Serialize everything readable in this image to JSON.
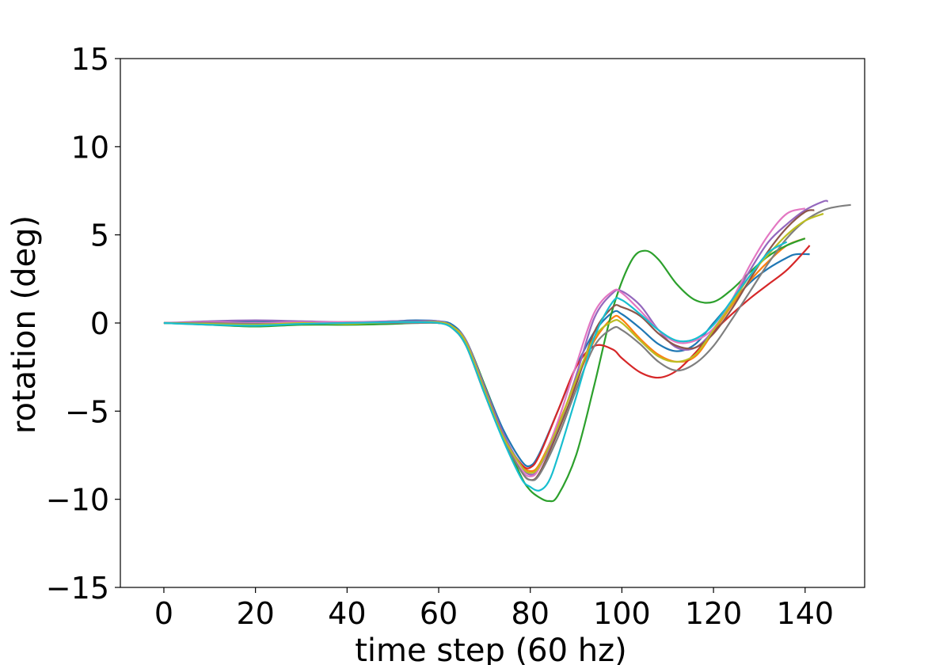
{
  "chart_data": {
    "type": "line",
    "title": "",
    "xlabel": "time step (60 hz)",
    "ylabel": "rotation (deg)",
    "xlim": [
      -9.5,
      153
    ],
    "ylim": [
      -15,
      15
    ],
    "x_ticks": [
      0,
      20,
      40,
      60,
      80,
      100,
      120,
      140
    ],
    "y_ticks": [
      -15,
      -10,
      -5,
      0,
      5,
      10,
      15
    ],
    "y_tick_labels": [
      "−15",
      "−10",
      "−5",
      "0",
      "5",
      "10",
      "15"
    ],
    "grid": false,
    "legend": "none",
    "series": [
      {
        "color": "#1f77b4",
        "x": [
          0,
          10,
          20,
          30,
          40,
          50,
          55,
          60,
          63,
          66,
          70,
          74,
          78,
          80,
          82,
          86,
          90,
          94,
          98,
          100,
          104,
          108,
          112,
          116,
          120,
          124,
          128,
          132,
          136,
          138,
          141
        ],
        "y": [
          0,
          0.05,
          0.1,
          0.05,
          0,
          0.1,
          0.15,
          0.1,
          -0.1,
          -1,
          -3.5,
          -6,
          -7.8,
          -8.1,
          -7.4,
          -5,
          -2.5,
          -0.5,
          0.6,
          0.5,
          -0.3,
          -1.2,
          -1.6,
          -1.2,
          0,
          1.2,
          2.3,
          3.1,
          3.7,
          3.9,
          3.9
        ]
      },
      {
        "color": "#ff7f0e",
        "x": [
          0,
          10,
          20,
          30,
          40,
          50,
          55,
          60,
          63,
          66,
          70,
          74,
          78,
          80,
          82,
          86,
          90,
          94,
          98,
          100,
          104,
          108,
          112,
          116,
          120,
          124,
          128,
          132,
          136,
          140
        ],
        "y": [
          0,
          -0.05,
          -0.1,
          0,
          0.05,
          0.05,
          0.05,
          0.05,
          -0.2,
          -1.1,
          -3.8,
          -6.4,
          -8,
          -8.4,
          -8,
          -5.8,
          -3.3,
          -1,
          0.3,
          0.2,
          -0.9,
          -1.8,
          -2.2,
          -1.9,
          -0.5,
          1,
          2.4,
          3.5,
          4.4,
          4.8
        ]
      },
      {
        "color": "#2ca02c",
        "x": [
          0,
          10,
          20,
          30,
          40,
          50,
          55,
          60,
          63,
          66,
          70,
          74,
          78,
          80,
          82,
          84,
          86,
          90,
          94,
          98,
          102,
          105,
          108,
          112,
          116,
          120,
          124,
          128,
          132,
          136,
          140
        ],
        "y": [
          0,
          -0.1,
          -0.2,
          -0.1,
          -0.1,
          -0.05,
          0,
          0,
          -0.2,
          -1,
          -3.5,
          -6.3,
          -8.7,
          -9.5,
          -9.9,
          -10.1,
          -9.8,
          -7.5,
          -3.5,
          0.8,
          3.5,
          4.1,
          3.6,
          2.2,
          1.3,
          1.2,
          1.9,
          2.9,
          3.8,
          4.4,
          4.8
        ]
      },
      {
        "color": "#d62728",
        "x": [
          0,
          10,
          20,
          30,
          40,
          50,
          55,
          60,
          63,
          66,
          70,
          74,
          78,
          80,
          82,
          86,
          90,
          94,
          98,
          100,
          104,
          108,
          112,
          116,
          120,
          124,
          128,
          132,
          136,
          140,
          141
        ],
        "y": [
          0,
          0,
          -0.05,
          0,
          0,
          0.05,
          0.1,
          0.05,
          -0.3,
          -1.3,
          -4,
          -6.5,
          -8,
          -8.2,
          -7.5,
          -5,
          -2.5,
          -1.3,
          -1.5,
          -2,
          -2.8,
          -3.1,
          -2.7,
          -1.7,
          -0.5,
          0.5,
          1.4,
          2.2,
          3,
          4.1,
          4.4
        ]
      },
      {
        "color": "#9467bd",
        "x": [
          0,
          10,
          20,
          30,
          40,
          50,
          55,
          60,
          63,
          66,
          70,
          74,
          78,
          80,
          82,
          86,
          90,
          94,
          98,
          100,
          104,
          108,
          112,
          116,
          120,
          124,
          128,
          132,
          136,
          140,
          144,
          145
        ],
        "y": [
          0,
          0.1,
          0.15,
          0.1,
          0.05,
          0.1,
          0.1,
          0.1,
          -0.2,
          -1,
          -3.6,
          -6.2,
          -8.1,
          -8.6,
          -8.2,
          -6,
          -3,
          0.3,
          1.7,
          1.8,
          1,
          -0.4,
          -1.4,
          -1.4,
          -0.4,
          1.2,
          3,
          4.6,
          5.6,
          6.4,
          6.9,
          6.9
        ]
      },
      {
        "color": "#8c564b",
        "x": [
          0,
          10,
          20,
          30,
          40,
          50,
          55,
          60,
          63,
          66,
          70,
          74,
          78,
          80,
          82,
          86,
          90,
          94,
          98,
          100,
          104,
          108,
          112,
          116,
          120,
          124,
          128,
          132,
          136,
          140,
          142
        ],
        "y": [
          0,
          0,
          0,
          0,
          0,
          0.05,
          0.05,
          0,
          -0.2,
          -1.2,
          -3.8,
          -6.4,
          -8.4,
          -8.9,
          -8.5,
          -6.2,
          -3.5,
          -0.5,
          0.9,
          0.9,
          0.4,
          -0.6,
          -1.3,
          -1.4,
          -0.6,
          0.8,
          2.5,
          4.1,
          5.4,
          6.3,
          6.4
        ]
      },
      {
        "color": "#e377c2",
        "x": [
          0,
          10,
          20,
          30,
          40,
          50,
          55,
          60,
          63,
          66,
          70,
          74,
          78,
          80,
          82,
          86,
          90,
          94,
          98,
          100,
          104,
          108,
          112,
          116,
          120,
          124,
          128,
          132,
          136,
          140
        ],
        "y": [
          0,
          0.05,
          0,
          0.05,
          0.05,
          0.05,
          0.05,
          0.05,
          -0.2,
          -1.2,
          -3.9,
          -6.5,
          -8.3,
          -8.7,
          -8.2,
          -5.6,
          -2.4,
          0.6,
          1.8,
          1.7,
          0.7,
          -0.4,
          -1.1,
          -1,
          -0.3,
          1.3,
          3.3,
          5,
          6.2,
          6.5
        ]
      },
      {
        "color": "#7f7f7f",
        "x": [
          0,
          10,
          20,
          30,
          40,
          50,
          55,
          60,
          63,
          66,
          70,
          74,
          78,
          80,
          82,
          86,
          90,
          94,
          98,
          100,
          104,
          108,
          112,
          116,
          120,
          124,
          128,
          132,
          136,
          140,
          144,
          147,
          150
        ],
        "y": [
          0,
          0,
          -0.05,
          -0.05,
          0,
          0,
          0,
          0,
          -0.2,
          -1.2,
          -3.9,
          -6.5,
          -8.4,
          -8.9,
          -8.6,
          -6.5,
          -3.8,
          -1.3,
          -0.3,
          -0.4,
          -1.2,
          -2.2,
          -2.7,
          -2.3,
          -1.3,
          0.2,
          1.8,
          3.4,
          4.8,
          5.8,
          6.4,
          6.6,
          6.7
        ]
      },
      {
        "color": "#bcbd22",
        "x": [
          0,
          10,
          20,
          30,
          40,
          50,
          55,
          60,
          63,
          66,
          70,
          74,
          78,
          80,
          82,
          86,
          90,
          94,
          98,
          100,
          104,
          108,
          112,
          116,
          120,
          124,
          128,
          132,
          136,
          140,
          144
        ],
        "y": [
          0,
          -0.05,
          -0.1,
          0,
          -0.05,
          0.05,
          0.05,
          0.05,
          -0.2,
          -1.1,
          -3.8,
          -6.4,
          -8.1,
          -8.5,
          -8.1,
          -5.9,
          -3.2,
          -0.8,
          0.1,
          0,
          -1,
          -1.9,
          -2.2,
          -1.8,
          -0.4,
          1.1,
          2.7,
          3.9,
          5,
          5.8,
          6.2
        ]
      },
      {
        "color": "#17becf",
        "x": [
          0,
          10,
          20,
          30,
          40,
          50,
          55,
          60,
          63,
          66,
          70,
          74,
          78,
          80,
          82,
          84,
          86,
          90,
          94,
          98,
          100,
          104,
          108,
          112,
          116,
          120,
          124,
          128,
          132,
          136
        ],
        "y": [
          0,
          -0.1,
          -0.15,
          -0.05,
          0,
          0.05,
          0.05,
          0,
          -0.3,
          -1.3,
          -4,
          -6.6,
          -8.8,
          -9.3,
          -9.5,
          -9,
          -7.6,
          -4.2,
          -0.8,
          1.2,
          1.3,
          0.5,
          -0.4,
          -1,
          -0.9,
          -0.1,
          1.3,
          2.7,
          4,
          4.6
        ]
      }
    ]
  }
}
